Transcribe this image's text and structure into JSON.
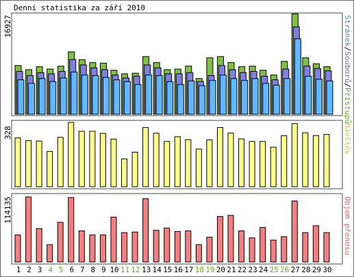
{
  "title": "Denní statistika za září 2010",
  "colors": {
    "hits": "#80c040",
    "files": "#8080e0",
    "pages": "#60b8ff",
    "visits": "#ffff88",
    "kbytes": "#f08080",
    "weekend_label": "#66aa22",
    "weekday_label": "#000000",
    "legend_pages": "#4488cc",
    "legend_files": "#6666cc",
    "legend_hits": "#66aa22",
    "legend_visits": "#cccc44",
    "legend_kbytes": "#dd6666"
  },
  "chart_data": [
    {
      "type": "bar",
      "name": "hits-files-pages",
      "ylim": [
        0,
        16927
      ],
      "ymax_label": "16927",
      "legend": {
        "pages": "Stránek",
        "sep1": "/",
        "files": "Souborů",
        "sep2": "/",
        "hits": "Přístupů"
      },
      "categories": [
        "1",
        "2",
        "3",
        "4",
        "5",
        "6",
        "7",
        "8",
        "9",
        "10",
        "11",
        "12",
        "13",
        "14",
        "15",
        "16",
        "17",
        "18",
        "19",
        "20",
        "21",
        "22",
        "23",
        "24",
        "25",
        "26",
        "27",
        "28",
        "29",
        "30"
      ],
      "weekend_days": [
        "4",
        "5",
        "11",
        "12",
        "18",
        "19",
        "25",
        "26"
      ],
      "series": [
        {
          "name": "Přístupů",
          "values": [
            8200,
            7500,
            8000,
            7600,
            8100,
            10500,
            9200,
            8700,
            8600,
            7400,
            6800,
            6900,
            9700,
            8700,
            7500,
            7600,
            8100,
            6000,
            9500,
            9700,
            8700,
            8000,
            8100,
            7400,
            6600,
            8900,
            16900,
            9500,
            8500,
            8000
          ]
        },
        {
          "name": "Souborů",
          "values": [
            7200,
            6500,
            7000,
            6800,
            7200,
            9200,
            8300,
            7800,
            7500,
            6600,
            6100,
            6400,
            8300,
            7800,
            6800,
            6800,
            7000,
            5500,
            6500,
            8200,
            7500,
            7000,
            7200,
            6400,
            5800,
            7600,
            14700,
            8100,
            7700,
            7300
          ]
        },
        {
          "name": "Stránek",
          "values": [
            5800,
            5200,
            6000,
            5500,
            6100,
            7100,
            6600,
            6500,
            6200,
            5800,
            5500,
            5000,
            6600,
            6500,
            5500,
            5000,
            5600,
            4800,
            5700,
            6600,
            6000,
            5700,
            6000,
            5200,
            4900,
            6000,
            12700,
            6400,
            5900,
            5600
          ]
        }
      ]
    },
    {
      "type": "bar",
      "name": "visits",
      "ylim": [
        0,
        328
      ],
      "ymax_label": "328",
      "legend": "Návštěv",
      "categories": [
        "1",
        "2",
        "3",
        "4",
        "5",
        "6",
        "7",
        "8",
        "9",
        "10",
        "11",
        "12",
        "13",
        "14",
        "15",
        "16",
        "17",
        "18",
        "19",
        "20",
        "21",
        "22",
        "23",
        "24",
        "25",
        "26",
        "27",
        "28",
        "29",
        "30"
      ],
      "values": [
        249,
        235,
        233,
        180,
        252,
        328,
        283,
        283,
        272,
        243,
        142,
        176,
        302,
        273,
        231,
        255,
        240,
        192,
        239,
        302,
        274,
        244,
        231,
        231,
        202,
        260,
        322,
        275,
        261,
        267
      ]
    },
    {
      "type": "bar",
      "name": "kbytes",
      "ylim": [
        0,
        114135
      ],
      "ymax_label": "114135",
      "legend": "Objem přenosu",
      "categories": [
        "1",
        "2",
        "3",
        "4",
        "5",
        "6",
        "7",
        "8",
        "9",
        "10",
        "11",
        "12",
        "13",
        "14",
        "15",
        "16",
        "17",
        "18",
        "19",
        "20",
        "21",
        "22",
        "23",
        "24",
        "25",
        "26",
        "27",
        "28",
        "29",
        "30"
      ],
      "values": [
        47000,
        113000,
        58000,
        30000,
        69000,
        112000,
        54000,
        47000,
        47000,
        78000,
        51000,
        52000,
        110000,
        55000,
        59000,
        53000,
        54000,
        30000,
        43000,
        79000,
        81000,
        54000,
        42000,
        60000,
        38000,
        44000,
        106000,
        51000,
        63000,
        51000
      ]
    }
  ]
}
